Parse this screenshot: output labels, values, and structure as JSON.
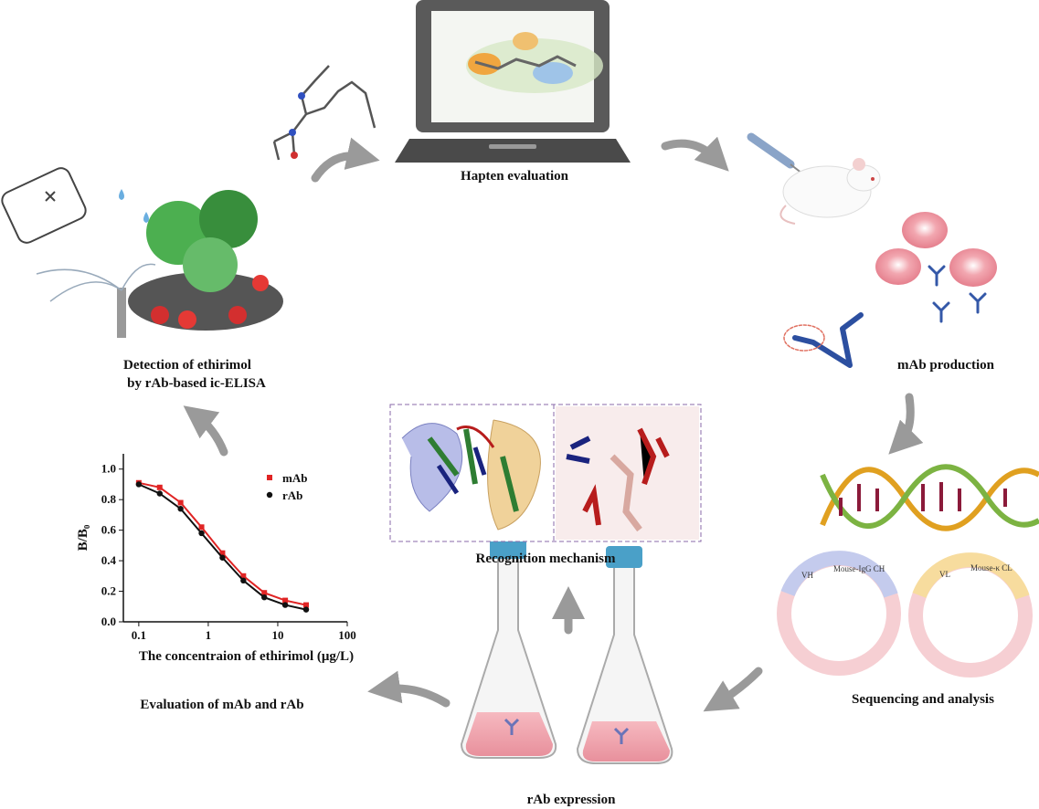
{
  "labels": {
    "hapten": "Hapten evaluation",
    "mab": "mAb production",
    "sequencing": "Sequencing and analysis",
    "expression": "rAb expression",
    "evaluation": "Evaluation of mAb and rAb",
    "recognition": "Recognition mechanism",
    "detection": [
      "Detection of ethirimol",
      "by rAb-based ic-ELISA"
    ]
  },
  "plasmids": [
    {
      "variable": "VH",
      "constant": "Mouse-IgG CH"
    },
    {
      "variable": "VL",
      "constant": "Mouse-κ CL"
    }
  ],
  "chart_data": {
    "type": "scatter",
    "xlabel": "The concentraion of ethirimol (μg/L)",
    "ylabel": "B/B₀",
    "x": [
      0.1,
      0.2,
      0.4,
      0.8,
      1.6,
      3.2,
      6.4,
      12.8,
      25.6
    ],
    "series": [
      {
        "name": "mAb",
        "color": "#e02424",
        "marker": "square",
        "values": [
          0.91,
          0.88,
          0.78,
          0.62,
          0.45,
          0.3,
          0.19,
          0.14,
          0.11
        ]
      },
      {
        "name": "rAb",
        "color": "#111111",
        "marker": "circle",
        "values": [
          0.9,
          0.84,
          0.74,
          0.58,
          0.42,
          0.27,
          0.16,
          0.11,
          0.08
        ]
      }
    ],
    "xlim": [
      0.06,
      100
    ],
    "xticks": [
      0.1,
      1,
      10,
      100
    ],
    "xlog": true,
    "ylim": [
      0,
      1.1
    ],
    "yticks": [
      {
        "value": 0,
        "label": "0.0"
      },
      0.2,
      0.4,
      0.6,
      0.8,
      {
        "value": 1,
        "label": "1.0"
      }
    ],
    "legend": "upper right"
  }
}
